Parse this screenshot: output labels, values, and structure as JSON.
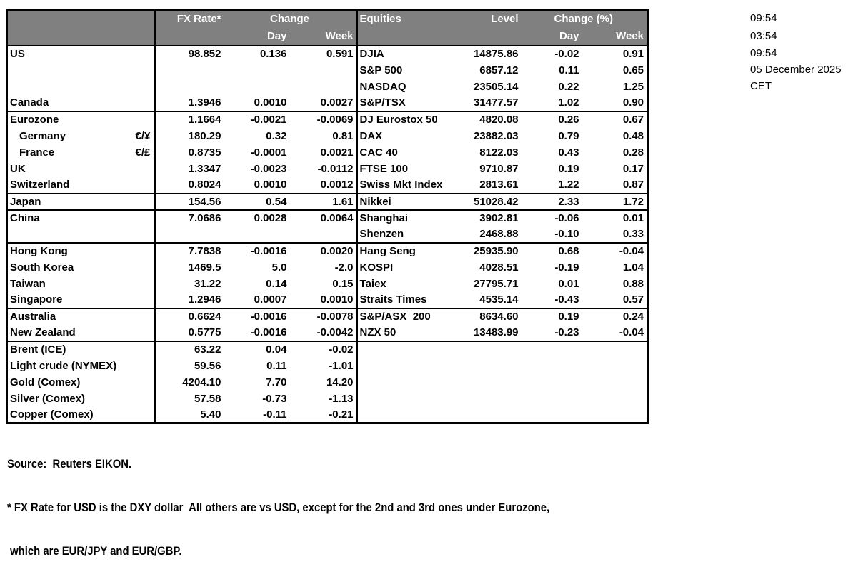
{
  "colors": {
    "header_bg": "#808080",
    "header_text": "#ffffff",
    "border": "#000000",
    "text": "#000000"
  },
  "table": {
    "header": {
      "fx_rate": "FX Rate*",
      "change": "Change",
      "day": "Day",
      "week": "Week",
      "equities": "Equities",
      "level": "Level",
      "change_pct": "Change (%)"
    },
    "rows": [
      {
        "label": "US",
        "pair": "",
        "fx": "98.852",
        "fx_day": "0.136",
        "fx_week": "0.591",
        "eq": "DJIA",
        "level": "14875.86",
        "eq_day": "-0.02",
        "eq_week": "0.91",
        "sep": false,
        "indent": false
      },
      {
        "label": "",
        "pair": "",
        "fx": "",
        "fx_day": "",
        "fx_week": "",
        "eq": "S&P 500",
        "level": "6857.12",
        "eq_day": "0.11",
        "eq_week": "0.65",
        "sep": false,
        "indent": false
      },
      {
        "label": "",
        "pair": "",
        "fx": "",
        "fx_day": "",
        "fx_week": "",
        "eq": "NASDAQ",
        "level": "23505.14",
        "eq_day": "0.22",
        "eq_week": "1.25",
        "sep": false,
        "indent": false
      },
      {
        "label": "Canada",
        "pair": "",
        "fx": "1.3946",
        "fx_day": "0.0010",
        "fx_week": "0.0027",
        "eq": "S&P/TSX",
        "level": "31477.57",
        "eq_day": "1.02",
        "eq_week": "0.90",
        "sep": true,
        "indent": false
      },
      {
        "label": "Eurozone",
        "pair": "",
        "fx": "1.1664",
        "fx_day": "-0.0021",
        "fx_week": "-0.0069",
        "eq": "DJ Eurostox 50",
        "level": "4820.08",
        "eq_day": "0.26",
        "eq_week": "0.67",
        "sep": false,
        "indent": false
      },
      {
        "label": "Germany",
        "pair": "€/¥",
        "fx": "180.29",
        "fx_day": "0.32",
        "fx_week": "0.81",
        "eq": "DAX",
        "level": "23882.03",
        "eq_day": "0.79",
        "eq_week": "0.48",
        "sep": false,
        "indent": true
      },
      {
        "label": "France",
        "pair": "€/£",
        "fx": "0.8735",
        "fx_day": "-0.0001",
        "fx_week": "0.0021",
        "eq": "CAC 40",
        "level": "8122.03",
        "eq_day": "0.43",
        "eq_week": "0.28",
        "sep": false,
        "indent": true
      },
      {
        "label": "UK",
        "pair": "",
        "fx": "1.3347",
        "fx_day": "-0.0023",
        "fx_week": "-0.0112",
        "eq": "FTSE 100",
        "level": "9710.87",
        "eq_day": "0.19",
        "eq_week": "0.17",
        "sep": false,
        "indent": false
      },
      {
        "label": "Switzerland",
        "pair": "",
        "fx": "0.8024",
        "fx_day": "0.0010",
        "fx_week": "0.0012",
        "eq": "Swiss Mkt Index",
        "level": "2813.61",
        "eq_day": "1.22",
        "eq_week": "0.87",
        "sep": true,
        "indent": false
      },
      {
        "label": "Japan",
        "pair": "",
        "fx": "154.56",
        "fx_day": "0.54",
        "fx_week": "1.61",
        "eq": "Nikkei",
        "level": "51028.42",
        "eq_day": "2.33",
        "eq_week": "1.72",
        "sep": true,
        "indent": false
      },
      {
        "label": "China",
        "pair": "",
        "fx": "7.0686",
        "fx_day": "0.0028",
        "fx_week": "0.0064",
        "eq": "Shanghai",
        "level": "3902.81",
        "eq_day": "-0.06",
        "eq_week": "0.01",
        "sep": false,
        "indent": false
      },
      {
        "label": "",
        "pair": "",
        "fx": "",
        "fx_day": "",
        "fx_week": "",
        "eq": "Shenzen",
        "level": "2468.88",
        "eq_day": "-0.10",
        "eq_week": "0.33",
        "sep": true,
        "indent": false
      },
      {
        "label": "Hong Kong",
        "pair": "",
        "fx": "7.7838",
        "fx_day": "-0.0016",
        "fx_week": "0.0020",
        "eq": "Hang Seng",
        "level": "25935.90",
        "eq_day": "0.68",
        "eq_week": "-0.04",
        "sep": false,
        "indent": false
      },
      {
        "label": "South Korea",
        "pair": "",
        "fx": "1469.5",
        "fx_day": "5.0",
        "fx_week": "-2.0",
        "eq": "KOSPI",
        "level": "4028.51",
        "eq_day": "-0.19",
        "eq_week": "1.04",
        "sep": false,
        "indent": false
      },
      {
        "label": "Taiwan",
        "pair": "",
        "fx": "31.22",
        "fx_day": "0.14",
        "fx_week": "0.15",
        "eq": "Taiex",
        "level": "27795.71",
        "eq_day": "0.01",
        "eq_week": "0.88",
        "sep": false,
        "indent": false
      },
      {
        "label": "Singapore",
        "pair": "",
        "fx": "1.2946",
        "fx_day": "0.0007",
        "fx_week": "0.0010",
        "eq": "Straits Times",
        "level": "4535.14",
        "eq_day": "-0.43",
        "eq_week": "0.57",
        "sep": true,
        "indent": false
      },
      {
        "label": "Australia",
        "pair": "",
        "fx": "0.6624",
        "fx_day": "-0.0016",
        "fx_week": "-0.0078",
        "eq": "S&P/ASX  200",
        "level": "8634.60",
        "eq_day": "0.19",
        "eq_week": "0.24",
        "sep": false,
        "indent": false
      },
      {
        "label": "New Zealand",
        "pair": "",
        "fx": "0.5775",
        "fx_day": "-0.0016",
        "fx_week": "-0.0042",
        "eq": "NZX 50",
        "level": "13483.99",
        "eq_day": "-0.23",
        "eq_week": "-0.04",
        "sep": true,
        "indent": false
      },
      {
        "label": "Brent (ICE)",
        "pair": "",
        "fx": "63.22",
        "fx_day": "0.04",
        "fx_week": "-0.02",
        "eq": "",
        "level": "",
        "eq_day": "",
        "eq_week": "",
        "sep": false,
        "indent": false
      },
      {
        "label": "Light crude (NYMEX)",
        "pair": "",
        "fx": "59.56",
        "fx_day": "0.11",
        "fx_week": "-1.01",
        "eq": "",
        "level": "",
        "eq_day": "",
        "eq_week": "",
        "sep": false,
        "indent": false
      },
      {
        "label": "Gold (Comex)",
        "pair": "",
        "fx": "4204.10",
        "fx_day": "7.70",
        "fx_week": "14.20",
        "eq": "",
        "level": "",
        "eq_day": "",
        "eq_week": "",
        "sep": false,
        "indent": false
      },
      {
        "label": "Silver (Comex)",
        "pair": "",
        "fx": "57.58",
        "fx_day": "-0.73",
        "fx_week": "-1.13",
        "eq": "",
        "level": "",
        "eq_day": "",
        "eq_week": "",
        "sep": false,
        "indent": false
      },
      {
        "label": "Copper (Comex)",
        "pair": "",
        "fx": "5.40",
        "fx_day": "-0.11",
        "fx_week": "-0.21",
        "eq": "",
        "level": "",
        "eq_day": "",
        "eq_week": "",
        "sep": false,
        "indent": false
      }
    ]
  },
  "timestamps": {
    "lines": [
      "09:54",
      "03:54",
      "09:54",
      "05 December 2025",
      "CET"
    ]
  },
  "footer": {
    "source": "Source:  Reuters EIKON.",
    "note1": "* FX Rate for USD is the DXY dollar  All others are vs USD, except for the 2nd and 3rd ones under Eurozone,",
    "note2": " which are EUR/JPY and EUR/GBP."
  }
}
